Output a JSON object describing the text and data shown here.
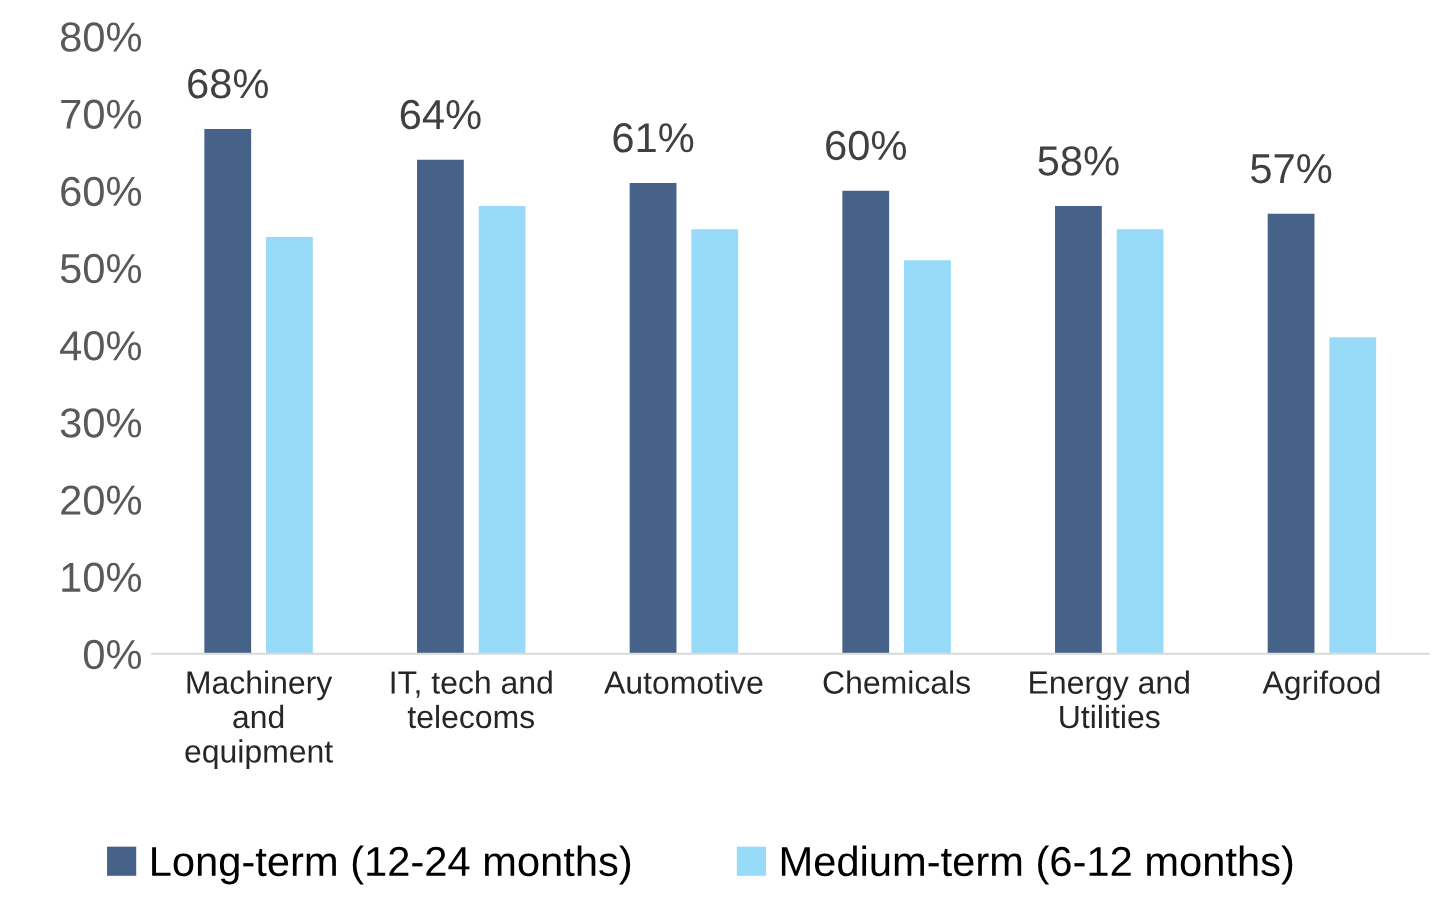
{
  "chart_data": {
    "type": "bar",
    "categories": [
      "Machinery\nand\nequipment",
      "IT, tech and\ntelecoms",
      "Automotive",
      "Chemicals",
      "Energy and\nUtilities",
      "Agrifood"
    ],
    "series": [
      {
        "name": "Long-term (12-24 months)",
        "color": "#466289",
        "values": [
          68,
          64,
          61,
          60,
          58,
          57
        ],
        "value_labels": [
          "68%",
          "64%",
          "61%",
          "60%",
          "58%",
          "57%"
        ]
      },
      {
        "name": "Medium-term (6-12 months)",
        "color": "#97dbf8",
        "values": [
          54,
          58,
          55,
          51,
          55,
          41
        ]
      }
    ],
    "ylim": [
      0,
      80
    ],
    "yticks": [
      {
        "value": 0,
        "label": "0%"
      },
      {
        "value": 10,
        "label": "10%"
      },
      {
        "value": 20,
        "label": "20%"
      },
      {
        "value": 30,
        "label": "30%"
      },
      {
        "value": 40,
        "label": "40%"
      },
      {
        "value": 50,
        "label": "50%"
      },
      {
        "value": 60,
        "label": "60%"
      },
      {
        "value": 70,
        "label": "70%"
      },
      {
        "value": 80,
        "label": "80%"
      }
    ],
    "grid": false,
    "legend": "bottom"
  }
}
